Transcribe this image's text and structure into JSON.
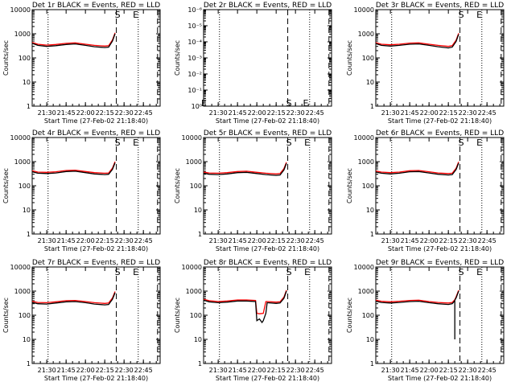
{
  "common": {
    "ylabel": "Counts/sec",
    "xlabel": "Start Time (27-Feb-02 21:18:40)",
    "xticks": [
      "21:30",
      "21:45",
      "22:00",
      "22:15",
      "22:30",
      "22:45"
    ],
    "yticks_counts": [
      "1",
      "10",
      "100",
      "1000",
      "10000"
    ],
    "yticks_small": [
      "10⁻⁶",
      "10⁻⁵",
      "10⁻⁴",
      "10⁻³",
      "10⁻²",
      "10⁻¹",
      "10⁰"
    ],
    "marker_s": "S",
    "marker_e": "E",
    "colors": {
      "events": "#000000",
      "lld": "#ff0000"
    }
  },
  "chart_data": [
    {
      "type": "line",
      "title": "Det 1r BLACK = Events, RED = LLD",
      "yscale": "log",
      "ylim": [
        1,
        10000
      ],
      "ytick_set": "counts",
      "xlim": [
        "21:18:40",
        "22:58:00"
      ],
      "vlines": [
        {
          "x": "21:31",
          "style": "dotted"
        },
        {
          "x": "22:24",
          "style": "dashed"
        },
        {
          "x": "22:41",
          "style": "dotted"
        },
        {
          "x": "22:56",
          "style": "dashed"
        }
      ],
      "markers": [
        {
          "label": "S",
          "x": "22:25",
          "y": 10000
        },
        {
          "label": "E",
          "x": "22:39",
          "y": 10000
        }
      ],
      "series": [
        {
          "name": "Events",
          "color": "#000000",
          "x": [
            "21:18:40",
            "21:23",
            "21:30",
            "21:37",
            "21:45",
            "21:52",
            "22:00",
            "22:07",
            "22:15",
            "22:18",
            "22:21",
            "22:23"
          ],
          "y": [
            400,
            330,
            300,
            320,
            360,
            380,
            330,
            290,
            270,
            280,
            500,
            1000
          ]
        },
        {
          "name": "LLD",
          "color": "#ff0000",
          "x": [
            "21:18:40",
            "21:23",
            "21:30",
            "21:37",
            "21:45",
            "21:52",
            "22:00",
            "22:07",
            "22:15",
            "22:18",
            "22:21",
            "22:23"
          ],
          "y": [
            440,
            370,
            340,
            360,
            400,
            420,
            370,
            330,
            310,
            320,
            560,
            1100
          ]
        }
      ]
    },
    {
      "type": "line",
      "title": "Det 2r BLACK = Events, RED = LLD",
      "yscale": "log",
      "ylim": [
        1,
        1e-06
      ],
      "ytick_set": "small",
      "xlim": [
        "21:18:40",
        "22:58:00"
      ],
      "vlines": [
        {
          "x": "21:31",
          "style": "dotted"
        },
        {
          "x": "22:24",
          "style": "dashed"
        },
        {
          "x": "22:41",
          "style": "dotted"
        },
        {
          "x": "22:56",
          "style": "dashed"
        }
      ],
      "markers": [
        {
          "label": "S",
          "x": "22:25",
          "y": 0.75
        },
        {
          "label": "E",
          "x": "22:38",
          "y": 0.75
        },
        {
          "label": "E",
          "x": "21:19",
          "y": 0.75
        }
      ],
      "series": []
    },
    {
      "type": "line",
      "title": "Det 3r BLACK = Events, RED = LLD",
      "yscale": "log",
      "ylim": [
        1,
        10000
      ],
      "ytick_set": "counts",
      "xlim": [
        "21:18:40",
        "22:58:00"
      ],
      "vlines": [
        {
          "x": "21:31",
          "style": "dotted"
        },
        {
          "x": "22:24",
          "style": "dashed"
        },
        {
          "x": "22:41",
          "style": "dotted"
        },
        {
          "x": "22:56",
          "style": "dashed"
        }
      ],
      "markers": [
        {
          "label": "S",
          "x": "22:25",
          "y": 10000
        },
        {
          "label": "E",
          "x": "22:39",
          "y": 10000
        }
      ],
      "series": [
        {
          "name": "Events",
          "color": "#000000",
          "x": [
            "21:18:40",
            "21:23",
            "21:30",
            "21:37",
            "21:45",
            "21:52",
            "22:00",
            "22:07",
            "22:15",
            "22:18",
            "22:21",
            "22:23"
          ],
          "y": [
            390,
            330,
            310,
            330,
            370,
            380,
            330,
            290,
            260,
            280,
            480,
            950
          ]
        },
        {
          "name": "LLD",
          "color": "#ff0000",
          "x": [
            "21:18:40",
            "21:23",
            "21:30",
            "21:37",
            "21:45",
            "21:52",
            "22:00",
            "22:07",
            "22:15",
            "22:18",
            "22:21",
            "22:23"
          ],
          "y": [
            430,
            370,
            350,
            370,
            410,
            420,
            370,
            330,
            300,
            320,
            540,
            1050
          ]
        }
      ]
    },
    {
      "type": "line",
      "title": "Det 4r BLACK = Events, RED = LLD",
      "yscale": "log",
      "ylim": [
        1,
        10000
      ],
      "ytick_set": "counts",
      "xlim": [
        "21:18:40",
        "22:58:00"
      ],
      "vlines": [
        {
          "x": "21:31",
          "style": "dotted"
        },
        {
          "x": "22:24",
          "style": "dashed"
        },
        {
          "x": "22:41",
          "style": "dotted"
        },
        {
          "x": "22:56",
          "style": "dashed"
        }
      ],
      "markers": [
        {
          "label": "S",
          "x": "22:25",
          "y": 10000
        },
        {
          "label": "E",
          "x": "22:39",
          "y": 10000
        }
      ],
      "series": [
        {
          "name": "Events",
          "color": "#000000",
          "x": [
            "21:18:40",
            "21:23",
            "21:30",
            "21:37",
            "21:45",
            "21:52",
            "22:00",
            "22:07",
            "22:15",
            "22:18",
            "22:21",
            "22:23"
          ],
          "y": [
            380,
            330,
            320,
            340,
            390,
            400,
            350,
            310,
            290,
            300,
            480,
            900
          ]
        },
        {
          "name": "LLD",
          "color": "#ff0000",
          "x": [
            "21:18:40",
            "21:23",
            "21:30",
            "21:37",
            "21:45",
            "21:52",
            "22:00",
            "22:07",
            "22:15",
            "22:18",
            "22:21",
            "22:23"
          ],
          "y": [
            420,
            370,
            360,
            380,
            430,
            440,
            390,
            350,
            330,
            340,
            540,
            1000
          ]
        }
      ]
    },
    {
      "type": "line",
      "title": "Det 5r BLACK = Events, RED = LLD",
      "yscale": "log",
      "ylim": [
        1,
        10000
      ],
      "ytick_set": "counts",
      "xlim": [
        "21:18:40",
        "22:58:00"
      ],
      "vlines": [
        {
          "x": "21:31",
          "style": "dotted"
        },
        {
          "x": "22:24",
          "style": "dashed"
        },
        {
          "x": "22:41",
          "style": "dotted"
        },
        {
          "x": "22:56",
          "style": "dashed"
        }
      ],
      "markers": [
        {
          "label": "S",
          "x": "22:25",
          "y": 10000
        },
        {
          "label": "E",
          "x": "22:39",
          "y": 10000
        }
      ],
      "series": [
        {
          "name": "Events",
          "color": "#000000",
          "x": [
            "21:18:40",
            "21:23",
            "21:30",
            "21:37",
            "21:45",
            "21:52",
            "22:00",
            "22:07",
            "22:15",
            "22:18",
            "22:21",
            "22:23"
          ],
          "y": [
            330,
            300,
            290,
            310,
            350,
            360,
            320,
            290,
            270,
            280,
            450,
            850
          ]
        },
        {
          "name": "LLD",
          "color": "#ff0000",
          "x": [
            "21:18:40",
            "21:23",
            "21:30",
            "21:37",
            "21:45",
            "21:52",
            "22:00",
            "22:07",
            "22:15",
            "22:18",
            "22:21",
            "22:23"
          ],
          "y": [
            370,
            340,
            330,
            350,
            390,
            400,
            360,
            330,
            310,
            320,
            510,
            950
          ]
        }
      ]
    },
    {
      "type": "line",
      "title": "Det 6r BLACK = Events, RED = LLD",
      "yscale": "log",
      "ylim": [
        1,
        10000
      ],
      "ytick_set": "counts",
      "xlim": [
        "21:18:40",
        "22:58:00"
      ],
      "vlines": [
        {
          "x": "21:31",
          "style": "dotted"
        },
        {
          "x": "22:24",
          "style": "dashed"
        },
        {
          "x": "22:41",
          "style": "dotted"
        },
        {
          "x": "22:56",
          "style": "dashed"
        }
      ],
      "markers": [
        {
          "label": "S",
          "x": "22:25",
          "y": 10000
        },
        {
          "label": "E",
          "x": "22:39",
          "y": 10000
        }
      ],
      "series": [
        {
          "name": "Events",
          "color": "#000000",
          "x": [
            "21:18:40",
            "21:23",
            "21:30",
            "21:37",
            "21:45",
            "21:52",
            "22:00",
            "22:07",
            "22:15",
            "22:18",
            "22:21",
            "22:23"
          ],
          "y": [
            370,
            330,
            310,
            330,
            380,
            390,
            340,
            300,
            280,
            290,
            470,
            880
          ]
        },
        {
          "name": "LLD",
          "color": "#ff0000",
          "x": [
            "21:18:40",
            "21:23",
            "21:30",
            "21:37",
            "21:45",
            "21:52",
            "22:00",
            "22:07",
            "22:15",
            "22:18",
            "22:21",
            "22:23"
          ],
          "y": [
            410,
            370,
            350,
            370,
            420,
            430,
            380,
            340,
            320,
            330,
            530,
            980
          ]
        }
      ]
    },
    {
      "type": "line",
      "title": "Det 7r BLACK = Events, RED = LLD",
      "yscale": "log",
      "ylim": [
        1,
        10000
      ],
      "ytick_set": "counts",
      "xlim": [
        "21:18:40",
        "22:58:00"
      ],
      "vlines": [
        {
          "x": "21:31",
          "style": "dotted"
        },
        {
          "x": "22:24",
          "style": "dashed"
        },
        {
          "x": "22:41",
          "style": "dotted"
        },
        {
          "x": "22:56",
          "style": "dashed"
        }
      ],
      "markers": [
        {
          "label": "S",
          "x": "22:25",
          "y": 10000
        },
        {
          "label": "E",
          "x": "22:39",
          "y": 10000
        }
      ],
      "series": [
        {
          "name": "Events",
          "color": "#000000",
          "x": [
            "21:18:40",
            "21:23",
            "21:30",
            "21:37",
            "21:45",
            "21:52",
            "22:00",
            "22:07",
            "22:15",
            "22:18",
            "22:21",
            "22:23"
          ],
          "y": [
            340,
            300,
            290,
            320,
            360,
            370,
            330,
            290,
            270,
            280,
            460,
            860
          ]
        },
        {
          "name": "LLD",
          "color": "#ff0000",
          "x": [
            "21:18:40",
            "21:23",
            "21:30",
            "21:37",
            "21:45",
            "21:52",
            "22:00",
            "22:07",
            "22:15",
            "22:18",
            "22:21",
            "22:23"
          ],
          "y": [
            380,
            340,
            330,
            360,
            400,
            410,
            370,
            330,
            310,
            320,
            520,
            960
          ]
        }
      ]
    },
    {
      "type": "line",
      "title": "Det 8r BLACK = Events, RED = LLD",
      "yscale": "log",
      "ylim": [
        1,
        10000
      ],
      "ytick_set": "counts",
      "xlim": [
        "21:18:40",
        "22:58:00"
      ],
      "vlines": [
        {
          "x": "21:31",
          "style": "dotted"
        },
        {
          "x": "22:24",
          "style": "dashed"
        },
        {
          "x": "22:41",
          "style": "dotted"
        },
        {
          "x": "22:56",
          "style": "dashed"
        }
      ],
      "markers": [
        {
          "label": "S",
          "x": "22:25",
          "y": 10000
        },
        {
          "label": "E",
          "x": "22:39",
          "y": 10000
        }
      ],
      "series": [
        {
          "name": "Events",
          "color": "#000000",
          "x": [
            "21:18:40",
            "21:23",
            "21:30",
            "21:37",
            "21:45",
            "21:52",
            "21:59",
            "22:00",
            "22:02",
            "22:04",
            "22:05",
            "22:07",
            "22:08",
            "22:15",
            "22:18",
            "22:21",
            "22:23"
          ],
          "y": [
            420,
            360,
            330,
            350,
            390,
            390,
            370,
            60,
            70,
            50,
            60,
            120,
            330,
            310,
            320,
            500,
            1000
          ]
        },
        {
          "name": "LLD",
          "color": "#ff0000",
          "x": [
            "21:18:40",
            "21:23",
            "21:30",
            "21:37",
            "21:45",
            "21:52",
            "21:59",
            "22:00",
            "22:02",
            "22:04",
            "22:05",
            "22:07",
            "22:08",
            "22:15",
            "22:18",
            "22:21",
            "22:23"
          ],
          "y": [
            460,
            400,
            370,
            390,
            430,
            430,
            410,
            120,
            115,
            118,
            120,
            370,
            370,
            350,
            360,
            560,
            1100
          ]
        }
      ]
    },
    {
      "type": "line",
      "title": "Det 9r BLACK = Events, RED = LLD",
      "yscale": "log",
      "ylim": [
        1,
        10000
      ],
      "ytick_set": "counts",
      "xlim": [
        "21:18:40",
        "22:58:00"
      ],
      "vlines": [
        {
          "x": "21:31",
          "style": "dotted"
        },
        {
          "x": "22:24",
          "style": "dashed"
        },
        {
          "x": "22:41",
          "style": "dotted"
        },
        {
          "x": "22:56",
          "style": "dashed"
        }
      ],
      "markers": [
        {
          "label": "S",
          "x": "22:25",
          "y": 10000
        },
        {
          "label": "E",
          "x": "22:39",
          "y": 10000
        }
      ],
      "series": [
        {
          "name": "Events",
          "color": "#000000",
          "x": [
            "21:18:40",
            "21:23",
            "21:30",
            "21:37",
            "21:45",
            "21:52",
            "22:00",
            "22:07",
            "22:15",
            "22:18",
            "22:20",
            "22:20",
            "22:20",
            "22:21",
            "22:23"
          ],
          "y": [
            380,
            340,
            320,
            340,
            370,
            380,
            330,
            300,
            280,
            300,
            400,
            10,
            420,
            520,
            1000
          ]
        },
        {
          "name": "LLD",
          "color": "#ff0000",
          "x": [
            "21:18:40",
            "21:23",
            "21:30",
            "21:37",
            "21:45",
            "21:52",
            "22:00",
            "22:07",
            "22:15",
            "22:18",
            "22:20",
            "22:21",
            "22:23"
          ],
          "y": [
            420,
            380,
            360,
            380,
            410,
            420,
            370,
            340,
            320,
            340,
            440,
            580,
            1100
          ]
        }
      ]
    }
  ]
}
